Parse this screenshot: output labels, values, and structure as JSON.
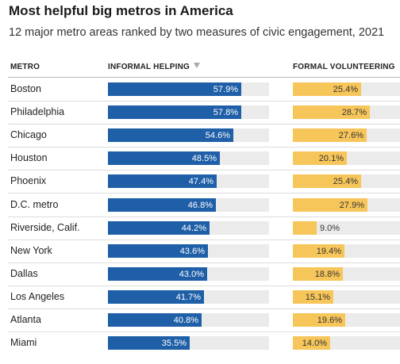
{
  "chart_data": {
    "type": "table",
    "title": "Most helpful big metros in America",
    "subtitle": "12 major metro areas ranked by two measures of civic engagement, 2021",
    "columns": {
      "metro": "METRO",
      "informal": "INFORMAL HELPING",
      "formal": "FORMAL VOLUNTEERING"
    },
    "sort_indicator": "descending",
    "colors": {
      "informal": "#1f5fa7",
      "formal": "#f7c65a",
      "track": "#ebebeb"
    },
    "informal_range": [
      0,
      70
    ],
    "formal_range": [
      0,
      40
    ],
    "rows": [
      {
        "metro": "Boston",
        "informal": 57.9,
        "informal_label": "57.9%",
        "formal": 25.4,
        "formal_label": "25.4%"
      },
      {
        "metro": "Philadelphia",
        "informal": 57.8,
        "informal_label": "57.8%",
        "formal": 28.7,
        "formal_label": "28.7%"
      },
      {
        "metro": "Chicago",
        "informal": 54.6,
        "informal_label": "54.6%",
        "formal": 27.6,
        "formal_label": "27.6%"
      },
      {
        "metro": "Houston",
        "informal": 48.5,
        "informal_label": "48.5%",
        "formal": 20.1,
        "formal_label": "20.1%"
      },
      {
        "metro": "Phoenix",
        "informal": 47.4,
        "informal_label": "47.4%",
        "formal": 25.4,
        "formal_label": "25.4%"
      },
      {
        "metro": "D.C. metro",
        "informal": 46.8,
        "informal_label": "46.8%",
        "formal": 27.9,
        "formal_label": "27.9%"
      },
      {
        "metro": "Riverside, Calif.",
        "informal": 44.2,
        "informal_label": "44.2%",
        "formal": 9.0,
        "formal_label": "9.0%"
      },
      {
        "metro": "New York",
        "informal": 43.6,
        "informal_label": "43.6%",
        "formal": 19.4,
        "formal_label": "19.4%"
      },
      {
        "metro": "Dallas",
        "informal": 43.0,
        "informal_label": "43.0%",
        "formal": 18.8,
        "formal_label": "18.8%"
      },
      {
        "metro": "Los Angeles",
        "informal": 41.7,
        "informal_label": "41.7%",
        "formal": 15.1,
        "formal_label": "15.1%"
      },
      {
        "metro": "Atlanta",
        "informal": 40.8,
        "informal_label": "40.8%",
        "formal": 19.6,
        "formal_label": "19.6%"
      },
      {
        "metro": "Miami",
        "informal": 35.5,
        "informal_label": "35.5%",
        "formal": 14.0,
        "formal_label": "14.0%"
      }
    ]
  }
}
